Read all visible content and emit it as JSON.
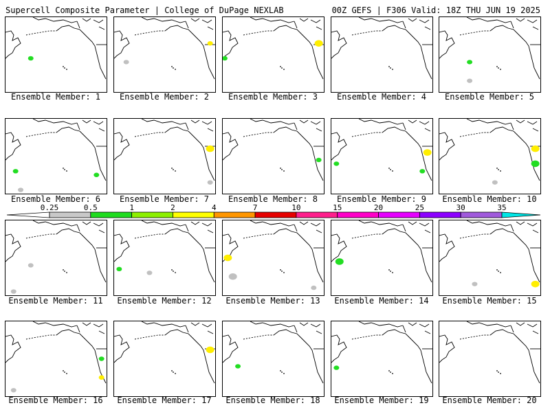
{
  "header": {
    "title": "Supercell Composite Parameter | College of DuPage NEXLAB",
    "run_info": "00Z GEFS | F306 Valid: 18Z THU JUN 19 2025"
  },
  "members": [
    {
      "label": "Ensemble Member: 1",
      "shading": [
        {
          "nx": 0.25,
          "ny": 0.55,
          "c": "green",
          "s": 1
        }
      ]
    },
    {
      "label": "Ensemble Member: 2",
      "shading": [
        {
          "nx": 0.95,
          "ny": 0.35,
          "c": "yellow",
          "s": 1
        },
        {
          "nx": 0.12,
          "ny": 0.6,
          "c": "gray",
          "s": 1
        }
      ]
    },
    {
      "label": "Ensemble Member: 3",
      "shading": [
        {
          "nx": 0.95,
          "ny": 0.35,
          "c": "yellow",
          "s": 2
        },
        {
          "nx": 0.02,
          "ny": 0.55,
          "c": "green",
          "s": 1
        }
      ]
    },
    {
      "label": "Ensemble Member: 4",
      "shading": []
    },
    {
      "label": "Ensemble Member: 5",
      "shading": [
        {
          "nx": 0.3,
          "ny": 0.6,
          "c": "green",
          "s": 1
        },
        {
          "nx": 0.3,
          "ny": 0.85,
          "c": "gray",
          "s": 1
        }
      ]
    },
    {
      "label": "Ensemble Member: 6",
      "shading": [
        {
          "nx": 0.1,
          "ny": 0.7,
          "c": "green",
          "s": 1
        },
        {
          "nx": 0.9,
          "ny": 0.75,
          "c": "green",
          "s": 1
        },
        {
          "nx": 0.15,
          "ny": 0.95,
          "c": "gray",
          "s": 1
        }
      ]
    },
    {
      "label": "Ensemble Member: 7",
      "shading": [
        {
          "nx": 0.95,
          "ny": 0.4,
          "c": "yellow",
          "s": 2
        },
        {
          "nx": 0.95,
          "ny": 0.85,
          "c": "gray",
          "s": 1
        }
      ]
    },
    {
      "label": "Ensemble Member: 8",
      "shading": [
        {
          "nx": 0.95,
          "ny": 0.55,
          "c": "green",
          "s": 1
        }
      ]
    },
    {
      "label": "Ensemble Member: 9",
      "shading": [
        {
          "nx": 0.95,
          "ny": 0.45,
          "c": "yellow",
          "s": 2
        },
        {
          "nx": 0.05,
          "ny": 0.6,
          "c": "green",
          "s": 1
        },
        {
          "nx": 0.9,
          "ny": 0.7,
          "c": "green",
          "s": 1
        }
      ]
    },
    {
      "label": "Ensemble Member: 10",
      "shading": [
        {
          "nx": 0.95,
          "ny": 0.4,
          "c": "yellow",
          "s": 2
        },
        {
          "nx": 0.95,
          "ny": 0.6,
          "c": "green",
          "s": 2
        },
        {
          "nx": 0.55,
          "ny": 0.85,
          "c": "gray",
          "s": 1
        }
      ]
    },
    {
      "label": "Ensemble Member: 11",
      "shading": [
        {
          "nx": 0.25,
          "ny": 0.6,
          "c": "gray",
          "s": 1
        },
        {
          "nx": 0.08,
          "ny": 0.95,
          "c": "gray",
          "s": 1
        }
      ]
    },
    {
      "label": "Ensemble Member: 12",
      "shading": [
        {
          "nx": 0.05,
          "ny": 0.65,
          "c": "green",
          "s": 1
        },
        {
          "nx": 0.35,
          "ny": 0.7,
          "c": "gray",
          "s": 1
        }
      ]
    },
    {
      "label": "Ensemble Member: 13",
      "shading": [
        {
          "nx": 0.05,
          "ny": 0.5,
          "c": "yellow",
          "s": 2
        },
        {
          "nx": 0.1,
          "ny": 0.75,
          "c": "gray",
          "s": 2
        },
        {
          "nx": 0.9,
          "ny": 0.9,
          "c": "gray",
          "s": 1
        }
      ]
    },
    {
      "label": "Ensemble Member: 14",
      "shading": [
        {
          "nx": 0.08,
          "ny": 0.55,
          "c": "green",
          "s": 2
        }
      ]
    },
    {
      "label": "Ensemble Member: 15",
      "shading": [
        {
          "nx": 0.95,
          "ny": 0.85,
          "c": "yellow",
          "s": 2
        },
        {
          "nx": 0.35,
          "ny": 0.85,
          "c": "gray",
          "s": 1
        }
      ]
    },
    {
      "label": "Ensemble Member: 16",
      "shading": [
        {
          "nx": 0.95,
          "ny": 0.5,
          "c": "green",
          "s": 1
        },
        {
          "nx": 0.95,
          "ny": 0.75,
          "c": "yellow",
          "s": 1
        },
        {
          "nx": 0.08,
          "ny": 0.92,
          "c": "gray",
          "s": 1
        }
      ]
    },
    {
      "label": "Ensemble Member: 17",
      "shading": [
        {
          "nx": 0.95,
          "ny": 0.38,
          "c": "yellow",
          "s": 2
        }
      ]
    },
    {
      "label": "Ensemble Member: 18",
      "shading": [
        {
          "nx": 0.15,
          "ny": 0.6,
          "c": "green",
          "s": 1
        }
      ]
    },
    {
      "label": "Ensemble Member: 19",
      "shading": [
        {
          "nx": 0.05,
          "ny": 0.62,
          "c": "green",
          "s": 1
        }
      ]
    },
    {
      "label": "Ensemble Member: 20",
      "shading": []
    }
  ],
  "colorbar": {
    "ticks": [
      "0.25",
      "0.5",
      "1",
      "2",
      "4",
      "7",
      "10",
      "15",
      "20",
      "25",
      "30",
      "35"
    ],
    "colors": [
      "#ffffff",
      "#c8c8c8",
      "#1edc1e",
      "#8cf000",
      "#ffff00",
      "#ff9600",
      "#e60000",
      "#ff1e8c",
      "#ff00c8",
      "#e600ff",
      "#8c00ff",
      "#a05adc",
      "#00e6e6"
    ]
  },
  "shade_colors": {
    "gray": "#c0c0c0",
    "green": "#22dd22",
    "yellow": "#ffee00"
  }
}
